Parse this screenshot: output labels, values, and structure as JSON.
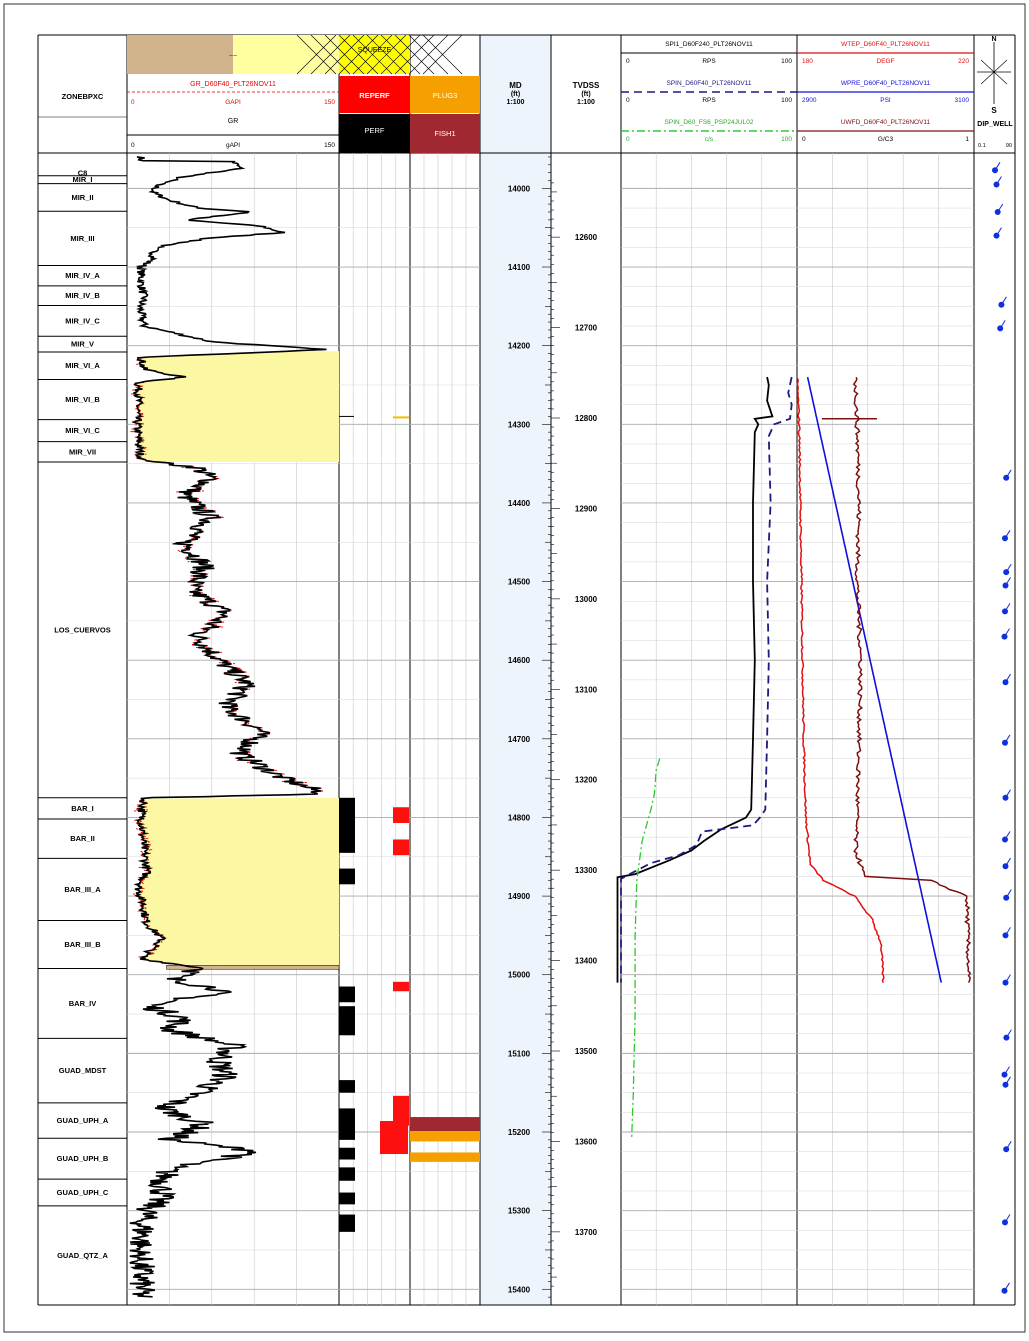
{
  "chart_data": {
    "type": "line",
    "tracks": {
      "zone": {
        "title": "ZONEBPXC",
        "zones": [
          {
            "name": "C8",
            "top": 13977,
            "base": 13984
          },
          {
            "name": "MIR_I",
            "top": 13984,
            "base": 13994
          },
          {
            "name": "MIR_II",
            "top": 13994,
            "base": 14029
          },
          {
            "name": "MIR_III",
            "top": 14029,
            "base": 14098
          },
          {
            "name": "MIR_IV_A",
            "top": 14098,
            "base": 14124
          },
          {
            "name": "MIR_IV_B",
            "top": 14124,
            "base": 14149
          },
          {
            "name": "MIR_IV_C",
            "top": 14149,
            "base": 14188
          },
          {
            "name": "MIR_V",
            "top": 14188,
            "base": 14208
          },
          {
            "name": "MIR_VI_A",
            "top": 14208,
            "base": 14243
          },
          {
            "name": "MIR_VI_B",
            "top": 14243,
            "base": 14294
          },
          {
            "name": "MIR_VI_C",
            "top": 14294,
            "base": 14322
          },
          {
            "name": "MIR_VII",
            "top": 14322,
            "base": 14348
          },
          {
            "name": "LOS_CUERVOS",
            "top": 14348,
            "base": 14775
          },
          {
            "name": "BAR_I",
            "top": 14775,
            "base": 14802
          },
          {
            "name": "BAR_II",
            "top": 14802,
            "base": 14852
          },
          {
            "name": "BAR_III_A",
            "top": 14852,
            "base": 14931
          },
          {
            "name": "BAR_III_B",
            "top": 14931,
            "base": 14992
          },
          {
            "name": "BAR_IV",
            "top": 14992,
            "base": 15081
          },
          {
            "name": "GUAD_MDST",
            "top": 15081,
            "base": 15163
          },
          {
            "name": "GUAD_UPH_A",
            "top": 15163,
            "base": 15208
          },
          {
            "name": "GUAD_UPH_B",
            "top": 15208,
            "base": 15260
          },
          {
            "name": "GUAD_UPH_C",
            "top": 15260,
            "base": 15294
          },
          {
            "name": "GUAD_QTZ_A",
            "top": 15294,
            "base": 15420
          }
        ]
      },
      "gr": {
        "mnemonic": "GR_D60F40_PLT26NOV11",
        "unit": "GAPI",
        "min": 0,
        "max": 150,
        "mnemonic2": "GR",
        "unit2": "gAPI",
        "min2": 0,
        "max2": 150,
        "tilde": "~~",
        "sand_fill_color": "#fbf7a2",
        "tan_color": "#d2b48c",
        "cutoff": 5
      },
      "perf": {
        "squeeze_label": "SQUEEZE",
        "reperf_label": "REPERF",
        "perf_label": "PERF",
        "perf_intervals": [
          [
            14775,
            14845
          ],
          [
            14865,
            14885
          ],
          [
            15015,
            15035
          ],
          [
            15040,
            15077
          ],
          [
            15134,
            15150
          ],
          [
            15170,
            15210
          ],
          [
            15220,
            15235
          ],
          [
            15245,
            15262
          ],
          [
            15277,
            15292
          ],
          [
            15305,
            15327
          ]
        ],
        "reperf_intervals": [
          [
            14787,
            14807
          ],
          [
            14828,
            14848
          ],
          [
            15009,
            15021
          ],
          [
            15154,
            15192
          ],
          [
            15186,
            15228
          ]
        ]
      },
      "plug": {
        "plug_label": "PLUG3",
        "fish_label": "FISH1",
        "plug_color": "#f5a000",
        "fish_color": "#a02830",
        "items": [
          {
            "type": "fish",
            "top": 15181,
            "base": 15199
          },
          {
            "type": "plug",
            "top": 15199,
            "base": 15212
          },
          {
            "type": "plug",
            "top": 15226,
            "base": 15238
          }
        ]
      },
      "md": {
        "title": "MD",
        "unit": "(ft)",
        "scale": "1:100",
        "ticks": [
          14000,
          14100,
          14200,
          14300,
          14400,
          14500,
          14600,
          14700,
          14800,
          14900,
          15000,
          15100,
          15200,
          15300,
          15400
        ]
      },
      "tvd": {
        "title": "TVDSS",
        "unit": "(ft)",
        "scale": "1:100",
        "ticks": [
          12600,
          12700,
          12800,
          12900,
          13000,
          13100,
          13200,
          13300,
          13400,
          13500,
          13600,
          13700
        ]
      },
      "spinner": {
        "curves": [
          {
            "name": "SPI1_D60F240_PLT26NOV11",
            "unit": "RPS",
            "min": 0,
            "max": 100,
            "color": "#000000",
            "dash": "",
            "points": [
              [
                14240,
                83
              ],
              [
                14250,
                84
              ],
              [
                14270,
                83
              ],
              [
                14290,
                86
              ],
              [
                14293,
                76
              ],
              [
                14300,
                78
              ],
              [
                14310,
                76
              ],
              [
                14400,
                75
              ],
              [
                14500,
                75
              ],
              [
                14600,
                76
              ],
              [
                14700,
                75
              ],
              [
                14790,
                74
              ],
              [
                14800,
                71
              ],
              [
                14815,
                57
              ],
              [
                14830,
                47
              ],
              [
                14842,
                40
              ],
              [
                14855,
                27
              ],
              [
                14872,
                8
              ],
              [
                14876,
                -2
              ],
              [
                15010,
                -2
              ]
            ]
          },
          {
            "name": "SPIN_D60F40_PLT26NOV11",
            "unit": "RPS",
            "min": 0,
            "max": 100,
            "color": "#1a1a80",
            "dash": "8,5",
            "points": [
              [
                14240,
                97
              ],
              [
                14260,
                95
              ],
              [
                14275,
                97
              ],
              [
                14293,
                96
              ],
              [
                14300,
                87
              ],
              [
                14315,
                84
              ],
              [
                14400,
                85
              ],
              [
                14500,
                83
              ],
              [
                14600,
                84
              ],
              [
                14700,
                83
              ],
              [
                14790,
                82
              ],
              [
                14800,
                79
              ],
              [
                14810,
                75
              ],
              [
                14818,
                46
              ],
              [
                14835,
                43
              ],
              [
                14848,
                33
              ],
              [
                14858,
                17
              ],
              [
                14872,
                5
              ],
              [
                14878,
                0
              ],
              [
                15010,
                0
              ]
            ]
          },
          {
            "name": "SPIN_D60_FS6_PSP24JUL02",
            "unit": "c/s",
            "min": 0,
            "max": 100,
            "color": "#2ec82e",
            "dash": "8,3,2,3",
            "points": [
              [
                14725,
                22
              ],
              [
                14740,
                20
              ],
              [
                14770,
                19
              ],
              [
                14790,
                17
              ],
              [
                14830,
                12
              ],
              [
                14880,
                9
              ],
              [
                14950,
                8
              ],
              [
                15050,
                8
              ],
              [
                15150,
                7
              ],
              [
                15210,
                6
              ]
            ]
          }
        ]
      },
      "temp": {
        "curves": [
          {
            "name": "WTEP_D60F40_PLT26NOV11",
            "unit": "DEGF",
            "min": 180,
            "max": 220,
            "color": "#e01010",
            "dash": "",
            "points": [
              [
                14240,
                180
              ],
              [
                14300,
                180.5
              ],
              [
                14500,
                181
              ],
              [
                14700,
                181.5
              ],
              [
                14800,
                182
              ],
              [
                14830,
                182.5
              ],
              [
                14860,
                183
              ],
              [
                14880,
                186
              ],
              [
                14900,
                193
              ],
              [
                14930,
                197
              ],
              [
                14960,
                199
              ],
              [
                15010,
                199.5
              ]
            ]
          },
          {
            "name": "WPRE_D60F40_PLT26NOV11",
            "unit": "PSI",
            "min": 2900,
            "max": 3100,
            "color": "#1010e0",
            "dash": "",
            "points": [
              [
                14240,
                2912
              ],
              [
                15010,
                3063
              ]
            ]
          },
          {
            "name": "UWFD_D60F40_PLT26NOV11",
            "unit": "G/C3",
            "min": 0,
            "max": 1,
            "color": "#7a1010",
            "dash": "",
            "points": [
              [
                14240,
                0.33
              ],
              [
                14300,
                0.34
              ],
              [
                14400,
                0.35
              ],
              [
                14500,
                0.34
              ],
              [
                14600,
                0.36
              ],
              [
                14700,
                0.35
              ],
              [
                14790,
                0.34
              ],
              [
                14840,
                0.33
              ],
              [
                14875,
                0.38
              ],
              [
                14880,
                0.75
              ],
              [
                14900,
                0.96
              ],
              [
                15010,
                0.97
              ]
            ]
          }
        ]
      },
      "dip": {
        "title": "DIP_WELL",
        "compass_n": "N",
        "compass_s": "S",
        "scale_min": "0.1",
        "scale_max": "90",
        "points": [
          [
            13977,
            3
          ],
          [
            13995,
            4
          ],
          [
            14030,
            5
          ],
          [
            14060,
            4
          ],
          [
            14148,
            10
          ],
          [
            14178,
            8
          ],
          [
            14368,
            25
          ],
          [
            14445,
            20
          ],
          [
            14488,
            25
          ],
          [
            14505,
            22
          ],
          [
            14538,
            20
          ],
          [
            14570,
            18
          ],
          [
            14628,
            22
          ],
          [
            14705,
            20
          ],
          [
            14775,
            22
          ],
          [
            14828,
            20
          ],
          [
            14862,
            22
          ],
          [
            14902,
            25
          ],
          [
            14950,
            22
          ],
          [
            15010,
            22
          ],
          [
            15080,
            26
          ],
          [
            15127,
            18
          ],
          [
            15140,
            22
          ],
          [
            15222,
            25
          ],
          [
            15315,
            20
          ],
          [
            15402,
            18
          ]
        ]
      }
    },
    "depth_range_md": [
      13955,
      15420
    ]
  }
}
